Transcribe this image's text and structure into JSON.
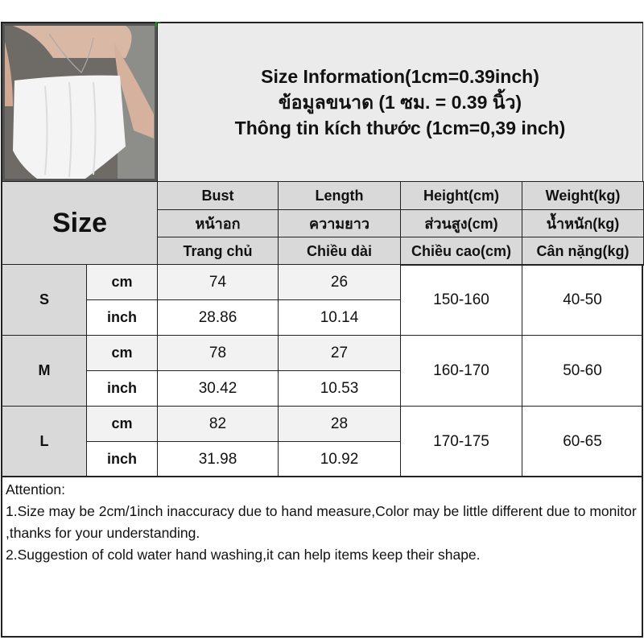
{
  "title": {
    "line1": "Size Information(1cm=0.39inch)",
    "line2": "ข้อมูลขนาด (1 ซม. = 0.39 นิ้ว)",
    "line3": "Thông tin kích thước (1cm=0,39 inch)"
  },
  "header": {
    "size_label": "Size",
    "columns": [
      {
        "en": "Bust",
        "th": "หน้าอก",
        "vi": "Trang chủ"
      },
      {
        "en": "Length",
        "th": "ความยาว",
        "vi": "Chiều dài"
      },
      {
        "en": "Height(cm)",
        "th": "ส่วนสูง(cm)",
        "vi": "Chiều cao(cm)"
      },
      {
        "en": "Weight(kg)",
        "th": "น้ำหนัก(kg)",
        "vi": "Cân nặng(kg)"
      }
    ]
  },
  "units": {
    "cm": "cm",
    "inch": "inch"
  },
  "rows": [
    {
      "size": "S",
      "bust_cm": "74",
      "length_cm": "26",
      "bust_in": "28.86",
      "length_in": "10.14",
      "height": "150-160",
      "weight": "40-50"
    },
    {
      "size": "M",
      "bust_cm": "78",
      "length_cm": "27",
      "bust_in": "30.42",
      "length_in": "10.53",
      "height": "160-170",
      "weight": "50-60"
    },
    {
      "size": "L",
      "bust_cm": "82",
      "length_cm": "28",
      "bust_in": "31.98",
      "length_in": "10.92",
      "height": "170-175",
      "weight": "60-65"
    }
  ],
  "attention": {
    "heading": "Attention:",
    "line1": "1.Size may be 2cm/1inch inaccuracy due to hand measure,Color may be little different due to monitor ,thanks for your understanding.",
    "line2": "2.Suggestion of cold water hand washing,it can help items keep their shape."
  }
}
